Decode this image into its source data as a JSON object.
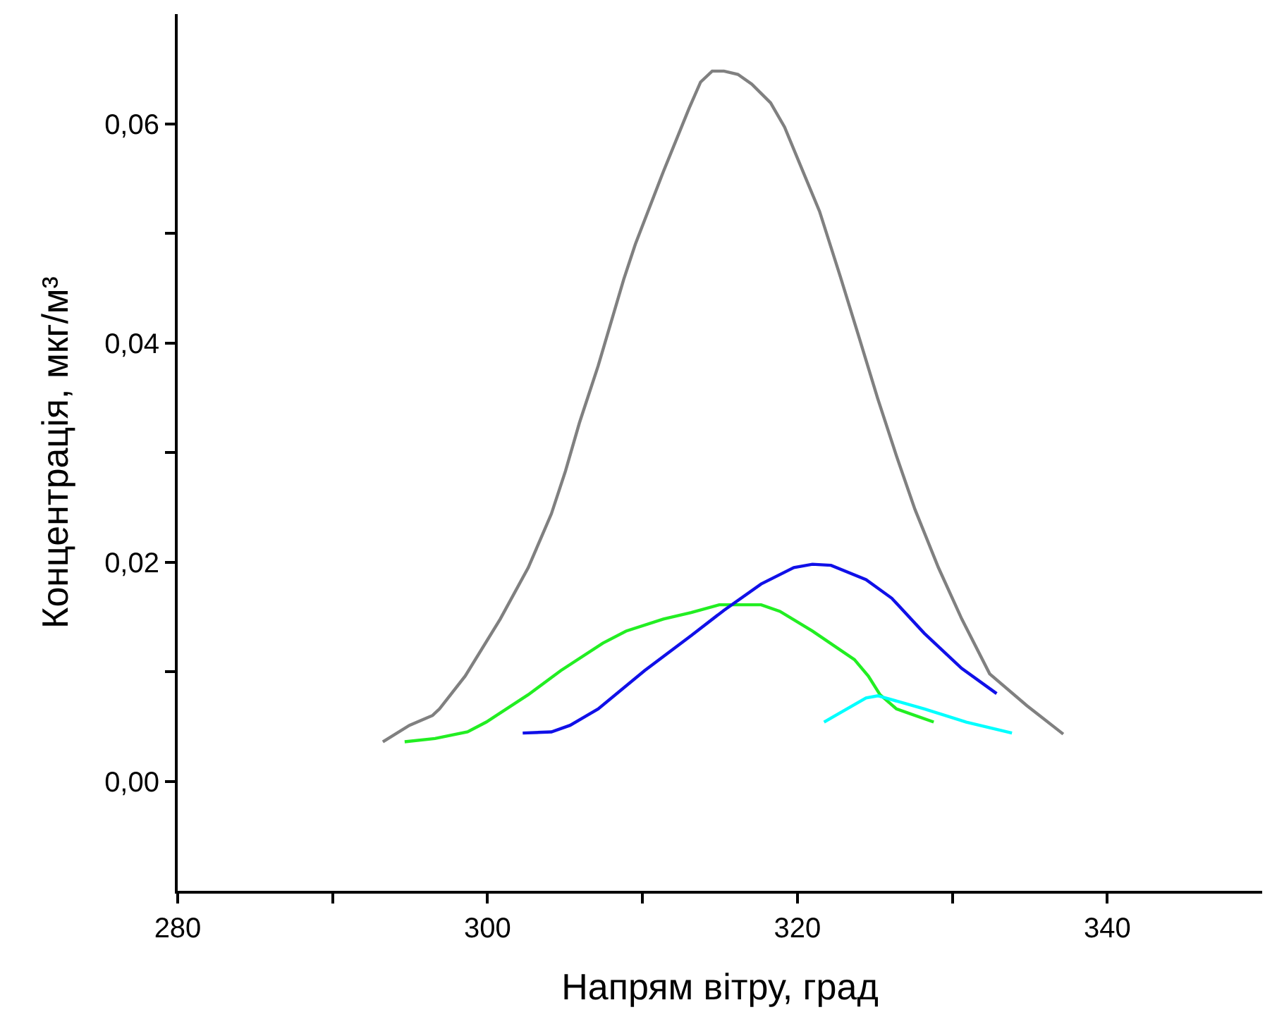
{
  "chart_data": {
    "type": "line",
    "xlabel": "Напрям вітру, град",
    "ylabel": "Концентрація, мкг/м³",
    "xlim": [
      280,
      350
    ],
    "xticks": [
      280,
      {
        "value": 290,
        "label": null
      },
      300,
      {
        "value": 310,
        "label": null
      },
      320,
      {
        "value": 330,
        "label": null
      },
      340
    ],
    "ylim": [
      -0.01,
      0.07
    ],
    "yticks": [
      {
        "value": 0,
        "label": "0,00"
      },
      {
        "value": 0.01,
        "label": null
      },
      {
        "value": 0.02,
        "label": "0,02"
      },
      {
        "value": 0.03,
        "label": null
      },
      {
        "value": 0.04,
        "label": "0,04"
      },
      {
        "value": 0.05,
        "label": null
      },
      {
        "value": 0.06,
        "label": "0,06"
      }
    ],
    "grid": false,
    "marker": "none",
    "line_style": "solid",
    "series": [
      {
        "color": "#808080",
        "x": [
          293.24,
          294.96,
          296.45,
          296.9,
          298.56,
          300.82,
          302.63,
          304.12,
          305.03,
          305.93,
          307.14,
          308.79,
          309.54,
          311.34,
          313.01,
          313.75,
          314.5,
          315.26,
          316.16,
          317.06,
          318.27,
          319.17,
          320.37,
          321.43,
          322.78,
          323.98,
          325.19,
          326.39,
          327.59,
          329.1,
          330.61,
          332.41,
          334.81,
          337.16
        ],
        "values": [
          0.0036,
          0.0051,
          0.006,
          0.0066,
          0.0096,
          0.0148,
          0.0195,
          0.0244,
          0.0283,
          0.0327,
          0.0379,
          0.0458,
          0.049,
          0.0556,
          0.0614,
          0.0638,
          0.0648,
          0.0648,
          0.0645,
          0.0636,
          0.0619,
          0.0597,
          0.0556,
          0.052,
          0.046,
          0.0405,
          0.0349,
          0.0297,
          0.0248,
          0.0195,
          0.0148,
          0.0098,
          0.0069,
          0.0043
        ]
      },
      {
        "color": "#22ee22",
        "x": [
          294.65,
          296.61,
          298.71,
          299.92,
          302.63,
          304.73,
          307.44,
          308.94,
          311.35,
          313.15,
          314.96,
          317.66,
          318.87,
          320.97,
          323.68,
          324.58,
          325.33,
          326.39,
          328.8
        ],
        "values": [
          0.0036,
          0.0039,
          0.0045,
          0.0054,
          0.0079,
          0.0101,
          0.0126,
          0.0137,
          0.0148,
          0.0154,
          0.0161,
          0.0161,
          0.0155,
          0.0137,
          0.0111,
          0.0096,
          0.0079,
          0.0066,
          0.0054
        ]
      },
      {
        "color": "#1010e8",
        "x": [
          302.27,
          304.12,
          305.33,
          307.14,
          310.14,
          313.15,
          315.26,
          317.66,
          319.77,
          320.97,
          322.17,
          324.43,
          326.09,
          328.19,
          330.6,
          332.86
        ],
        "values": [
          0.0044,
          0.0045,
          0.0051,
          0.0066,
          0.0101,
          0.0133,
          0.0156,
          0.018,
          0.0195,
          0.0198,
          0.0197,
          0.0184,
          0.0167,
          0.0135,
          0.0103,
          0.008
        ]
      },
      {
        "color": "#00ffff",
        "x": [
          321.72,
          324.43,
          325.19,
          328.19,
          330.9,
          333.85
        ],
        "values": [
          0.0054,
          0.0076,
          0.0078,
          0.0066,
          0.0054,
          0.0044
        ]
      }
    ]
  }
}
